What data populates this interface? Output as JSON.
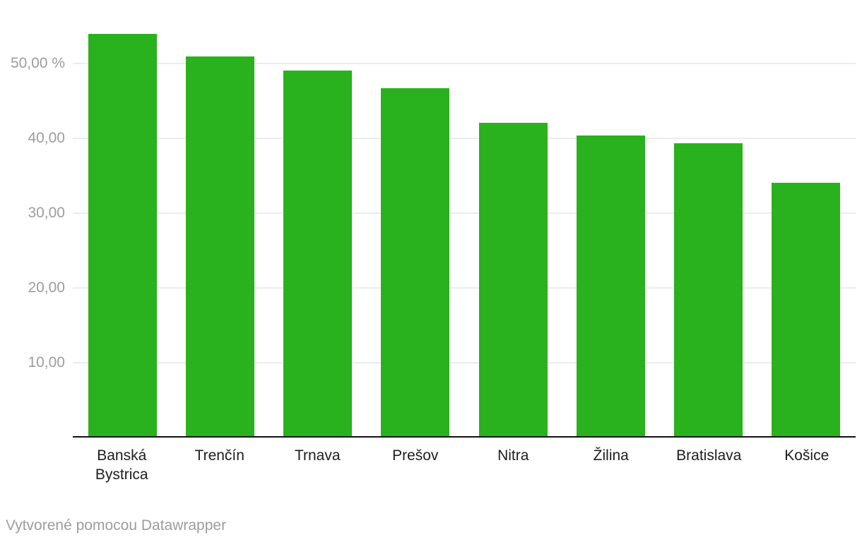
{
  "chart_data": {
    "type": "bar",
    "title": "",
    "categories": [
      "Banská Bystrica",
      "Trenčín",
      "Trnava",
      "Prešov",
      "Nitra",
      "Žilina",
      "Bratislava",
      "Košice"
    ],
    "values": [
      54.0,
      50.9,
      49.1,
      46.7,
      42.1,
      40.4,
      39.3,
      34.1
    ],
    "unit": "%",
    "xlabel": "",
    "ylabel": "",
    "ylim": [
      0,
      55.7
    ],
    "grid": true,
    "legend": "none",
    "y_ticks": [
      {
        "value": 10,
        "label": "10,00"
      },
      {
        "value": 20,
        "label": "20,00"
      },
      {
        "value": 30,
        "label": "30,00"
      },
      {
        "value": 40,
        "label": "40,00"
      },
      {
        "value": 50,
        "label": "50,00 %"
      }
    ],
    "bar_color": "#2ab11e"
  },
  "footer": {
    "prefix": "Vytvorené pomocou ",
    "link_label": "Datawrapper"
  },
  "colors": {
    "bar": "#2ab11e",
    "axis_line": "#111111",
    "gridline": "#ececec",
    "tick_label": "#9d9d9d",
    "category_label": "#1d1d1d",
    "footer_text": "#9d9d9d"
  }
}
